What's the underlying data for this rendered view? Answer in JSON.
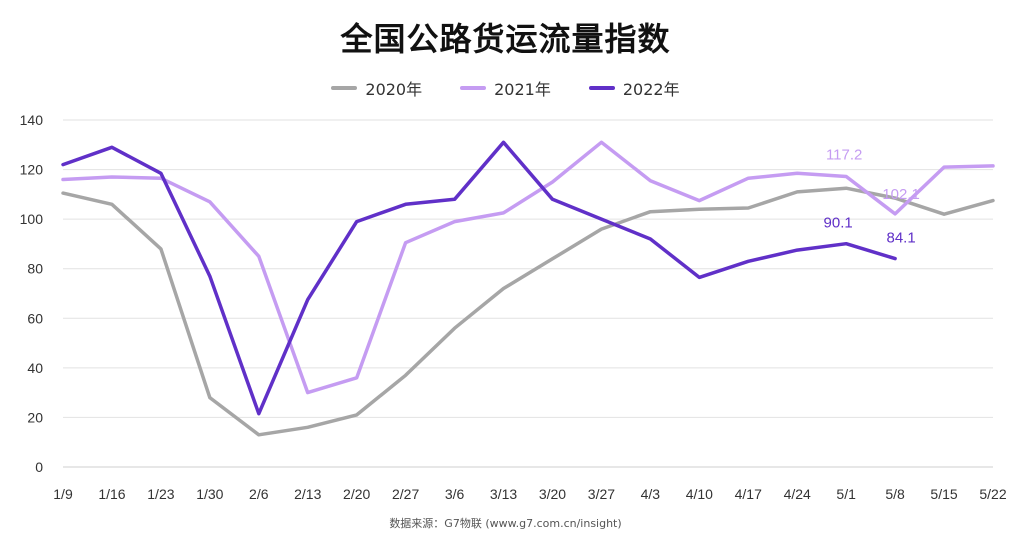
{
  "title": "全国公路货运流量指数",
  "source": "数据来源：G7物联 (www.g7.com.cn/insight)",
  "chart_data": {
    "type": "line",
    "title": "全国公路货运流量指数",
    "categories": [
      "1/9",
      "1/16",
      "1/23",
      "1/30",
      "2/6",
      "2/13",
      "2/20",
      "2/27",
      "3/6",
      "3/13",
      "3/20",
      "3/27",
      "4/3",
      "4/10",
      "4/17",
      "4/24",
      "5/1",
      "5/8",
      "5/15",
      "5/22"
    ],
    "ylim": [
      0,
      140
    ],
    "yticks": [
      0,
      20,
      40,
      60,
      80,
      100,
      120,
      140
    ],
    "grid": true,
    "legend_position": "top-center",
    "series": [
      {
        "name": "2020年",
        "color": "#a6a6a6",
        "values": [
          110.5,
          106,
          88,
          28,
          13,
          16,
          21,
          37,
          56,
          72,
          84,
          96,
          103,
          104,
          104.5,
          111,
          112.5,
          108.5,
          102,
          107.5
        ]
      },
      {
        "name": "2021年",
        "color": "#c59cf2",
        "values": [
          116,
          117,
          116.5,
          107,
          85,
          30,
          36,
          90.5,
          99,
          102.5,
          115,
          131,
          115.5,
          107.5,
          116.5,
          118.5,
          117.2,
          102.1,
          121,
          121.5
        ]
      },
      {
        "name": "2022年",
        "color": "#6030c8",
        "values": [
          122,
          129,
          118.5,
          77,
          21.5,
          67.5,
          99,
          106,
          108,
          131,
          108,
          100,
          92,
          76.5,
          83,
          87.5,
          90.1,
          84.1,
          null,
          null
        ]
      }
    ],
    "annotations": [
      {
        "series": 1,
        "index": 16,
        "label": "117.2"
      },
      {
        "series": 1,
        "index": 17,
        "label": "102.1"
      },
      {
        "series": 2,
        "index": 16,
        "label": "90.1"
      },
      {
        "series": 2,
        "index": 17,
        "label": "84.1"
      }
    ]
  }
}
